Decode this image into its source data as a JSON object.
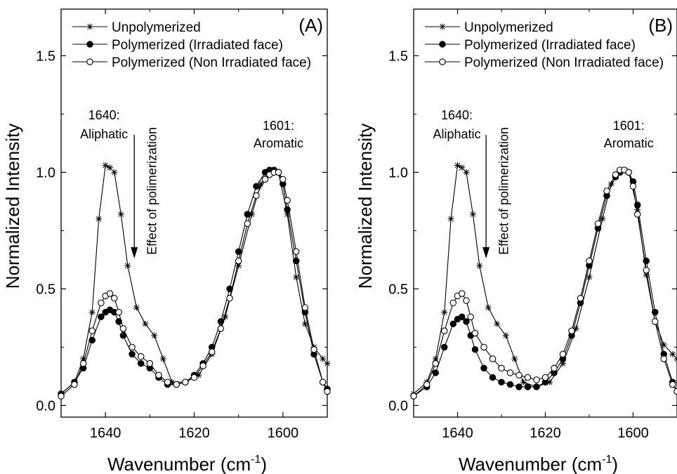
{
  "chart_data": [
    {
      "panel_label": "(A)",
      "type": "line",
      "xlabel": "Wavenumber (cm",
      "xlabel_sup": "-1",
      "xlabel_end": ")",
      "ylabel": "Normalized Intensity",
      "xlim": [
        1650,
        1590
      ],
      "ylim": [
        -0.05,
        1.7
      ],
      "x_ticks": [
        1640,
        1620,
        1600
      ],
      "y_ticks": [
        0.0,
        0.5,
        1.0,
        1.5
      ],
      "x_tick_labels": [
        "1640",
        "1620",
        "1600"
      ],
      "y_tick_labels": [
        "0.0",
        "0.5",
        "1.0",
        "1.5"
      ],
      "legend_position": "top",
      "annotations": {
        "aliphatic_number": "1640:",
        "aliphatic_text": "Aliphatic",
        "aromatic_number": "1601:",
        "aromatic_text": "Aromatic",
        "effect": "Effect of polimerization"
      },
      "series": [
        {
          "name": "Unpolymerized",
          "marker": "star",
          "x": [
            1650,
            1647,
            1645,
            1643,
            1641.5,
            1640,
            1639,
            1638,
            1636.5,
            1635,
            1633,
            1631,
            1629,
            1627,
            1625,
            1622,
            1619,
            1616,
            1613,
            1610,
            1607,
            1605,
            1603,
            1601,
            1599,
            1597,
            1595,
            1593,
            1591,
            1590
          ],
          "y": [
            0.05,
            0.1,
            0.2,
            0.4,
            0.8,
            1.03,
            1.02,
            1.0,
            0.82,
            0.6,
            0.42,
            0.35,
            0.3,
            0.2,
            0.1,
            0.1,
            0.13,
            0.22,
            0.38,
            0.6,
            0.82,
            0.95,
            1.0,
            1.0,
            0.82,
            0.55,
            0.35,
            0.25,
            0.2,
            0.18
          ]
        },
        {
          "name": "Polymerized (Irradiated face)",
          "marker": "filled-circle",
          "x": [
            1650,
            1647,
            1645,
            1643,
            1641,
            1640,
            1639,
            1638,
            1637,
            1636,
            1634,
            1632,
            1630,
            1628,
            1626,
            1624,
            1622,
            1620,
            1618,
            1616,
            1614,
            1612,
            1610,
            1608,
            1606,
            1604,
            1603,
            1602,
            1601,
            1600,
            1599,
            1597,
            1595,
            1593,
            1591,
            1590
          ],
          "y": [
            0.05,
            0.1,
            0.16,
            0.28,
            0.38,
            0.4,
            0.41,
            0.4,
            0.36,
            0.3,
            0.22,
            0.18,
            0.16,
            0.12,
            0.09,
            0.09,
            0.1,
            0.13,
            0.18,
            0.25,
            0.36,
            0.5,
            0.66,
            0.82,
            0.94,
            1.0,
            1.01,
            1.01,
            1.0,
            0.95,
            0.84,
            0.62,
            0.4,
            0.22,
            0.1,
            0.07
          ]
        },
        {
          "name": "Polymerized (Non Irradiated face)",
          "marker": "open-circle",
          "x": [
            1650,
            1647,
            1645,
            1643,
            1641,
            1640,
            1639,
            1638,
            1637,
            1636,
            1634,
            1632,
            1630,
            1628,
            1626,
            1624,
            1622,
            1620,
            1618,
            1616,
            1614,
            1612,
            1610,
            1608,
            1606,
            1604,
            1603,
            1602,
            1601,
            1600,
            1599,
            1597,
            1595,
            1593,
            1591,
            1590
          ],
          "y": [
            0.04,
            0.09,
            0.18,
            0.32,
            0.44,
            0.47,
            0.48,
            0.46,
            0.4,
            0.33,
            0.25,
            0.21,
            0.18,
            0.13,
            0.1,
            0.09,
            0.1,
            0.12,
            0.17,
            0.23,
            0.33,
            0.46,
            0.62,
            0.78,
            0.9,
            0.97,
            0.99,
            1.0,
            1.0,
            0.97,
            0.88,
            0.66,
            0.42,
            0.24,
            0.1,
            0.06
          ]
        }
      ]
    },
    {
      "panel_label": "(B)",
      "type": "line",
      "xlabel": "Wavenumber (cm",
      "xlabel_sup": "-1",
      "xlabel_end": ")",
      "ylabel": "Normalized Intensity",
      "xlim": [
        1650,
        1590
      ],
      "ylim": [
        -0.05,
        1.7
      ],
      "x_ticks": [
        1640,
        1620,
        1600
      ],
      "y_ticks": [
        0.0,
        0.5,
        1.0,
        1.5
      ],
      "x_tick_labels": [
        "1640",
        "1620",
        "1600"
      ],
      "y_tick_labels": [
        "0.0",
        "0.5",
        "1.0",
        "1.5"
      ],
      "legend_position": "top",
      "annotations": {
        "aliphatic_number": "1640:",
        "aliphatic_text": "Aliphatic",
        "aromatic_number": "1601:",
        "aromatic_text": "Aromatic",
        "effect": "Effect of polimerization"
      },
      "series": [
        {
          "name": "Unpolymerized",
          "marker": "star",
          "x": [
            1650,
            1647,
            1645,
            1643,
            1641.5,
            1640,
            1639,
            1638,
            1636.5,
            1635,
            1633,
            1631,
            1629,
            1627,
            1625,
            1622,
            1619,
            1616,
            1613,
            1610,
            1607,
            1605,
            1603,
            1601,
            1599,
            1597,
            1595,
            1593,
            1591,
            1590
          ],
          "y": [
            0.05,
            0.1,
            0.2,
            0.4,
            0.8,
            1.03,
            1.02,
            1.0,
            0.82,
            0.6,
            0.42,
            0.35,
            0.3,
            0.2,
            0.1,
            0.08,
            0.1,
            0.18,
            0.33,
            0.55,
            0.8,
            0.95,
            1.0,
            1.0,
            0.84,
            0.56,
            0.36,
            0.26,
            0.22,
            0.2
          ]
        },
        {
          "name": "Polymerized (Irradiated face)",
          "marker": "filled-circle",
          "x": [
            1650,
            1647,
            1645,
            1643,
            1641,
            1640,
            1639,
            1638,
            1637,
            1636,
            1634,
            1632,
            1630,
            1628,
            1626,
            1624,
            1622,
            1620,
            1618,
            1616,
            1614,
            1612,
            1610,
            1608,
            1606,
            1604,
            1603,
            1602,
            1601,
            1600,
            1599,
            1597,
            1595,
            1593,
            1591,
            1590
          ],
          "y": [
            0.04,
            0.08,
            0.14,
            0.25,
            0.35,
            0.37,
            0.38,
            0.36,
            0.3,
            0.24,
            0.16,
            0.12,
            0.1,
            0.09,
            0.08,
            0.08,
            0.08,
            0.1,
            0.14,
            0.2,
            0.3,
            0.44,
            0.6,
            0.76,
            0.9,
            0.98,
            1.0,
            1.01,
            1.0,
            0.96,
            0.86,
            0.62,
            0.4,
            0.22,
            0.1,
            0.06
          ]
        },
        {
          "name": "Polymerized (Non Irradiated face)",
          "marker": "open-circle",
          "x": [
            1650,
            1647,
            1645,
            1643,
            1641,
            1640,
            1639,
            1638,
            1637,
            1636,
            1634,
            1632,
            1630,
            1628,
            1626,
            1624,
            1622,
            1620,
            1618,
            1616,
            1614,
            1612,
            1610,
            1608,
            1606,
            1604,
            1603,
            1602,
            1601,
            1600,
            1599,
            1597,
            1595,
            1593,
            1591,
            1590
          ],
          "y": [
            0.04,
            0.09,
            0.18,
            0.32,
            0.44,
            0.47,
            0.48,
            0.45,
            0.38,
            0.31,
            0.25,
            0.2,
            0.16,
            0.14,
            0.13,
            0.12,
            0.11,
            0.12,
            0.16,
            0.22,
            0.32,
            0.46,
            0.62,
            0.78,
            0.92,
            0.99,
            1.01,
            1.01,
            1.0,
            0.94,
            0.82,
            0.58,
            0.36,
            0.2,
            0.09,
            0.06
          ]
        }
      ]
    }
  ]
}
